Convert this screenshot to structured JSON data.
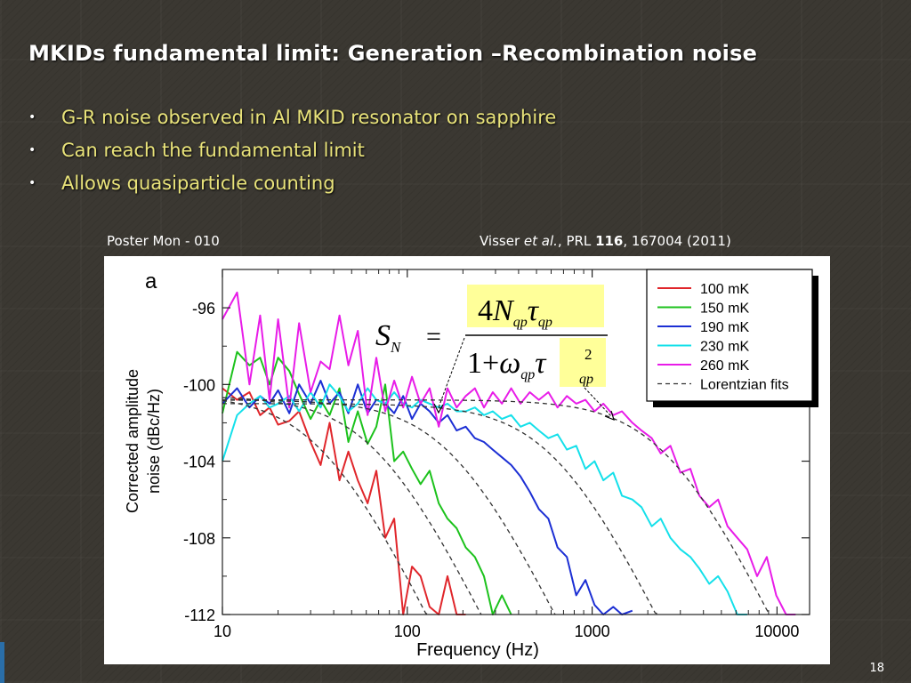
{
  "slide": {
    "title": "MKIDs fundamental limit: Generation –Recombination noise",
    "bullets": [
      "G-R noise observed in Al MKID resonator on sapphire",
      "Can reach the fundamental limit",
      "Allows quasiparticle counting"
    ],
    "poster_label": "Poster Mon - 010",
    "citation": {
      "prefix": "Visser ",
      "et_al": "et al.",
      "journal": ", PRL ",
      "volume": "116",
      "rest": ", 167004 (2011)"
    },
    "page_number": "18",
    "bullet_symbol": "•"
  },
  "formula": {
    "lhs": "S",
    "lhs_sub": "N",
    "equals": "=",
    "num_coef": "4",
    "num_var": "N",
    "sub_qp": "qp",
    "tau": "τ",
    "den_one": "1",
    "den_plus": "+",
    "omega": "ω",
    "exp": "2"
  },
  "chart_data": {
    "type": "line",
    "panel_label": "a",
    "xlabel": "Frequency (Hz)",
    "ylabel": [
      "Corrected amplitude",
      "noise (dBc/Hz)"
    ],
    "x_scale": "log",
    "xlim": [
      10,
      15000
    ],
    "ylim": [
      -112,
      -94
    ],
    "x_ticks": [
      10,
      100,
      1000,
      10000
    ],
    "x_tick_labels": [
      "10",
      "100",
      "1000",
      "10000"
    ],
    "y_ticks": [
      -96,
      -100,
      -104,
      -108,
      -112
    ],
    "y_tick_labels": [
      "-96",
      "-100",
      "-104",
      "-108",
      "-112"
    ],
    "grid": false,
    "legend_position": "top-right",
    "series": [
      {
        "name": "100 mK",
        "color": "#e0262b",
        "x": [
          10,
          12,
          14,
          16,
          18,
          20,
          23,
          26,
          30,
          34,
          38,
          43,
          48,
          54,
          61,
          68,
          76,
          85,
          95,
          106,
          118,
          132,
          148,
          165,
          185,
          207
        ],
        "y": [
          -100.2,
          -100.8,
          -100.4,
          -101.6,
          -101.2,
          -102.1,
          -101.9,
          -101.4,
          -103.0,
          -104.2,
          -102.0,
          -105.0,
          -103.5,
          -105.0,
          -106.2,
          -104.5,
          -108.0,
          -107.0,
          -112.0,
          -109.5,
          -110.0,
          -111.6,
          -112.0,
          -110.0,
          -112.0,
          -112.0
        ]
      },
      {
        "name": "150 mK",
        "color": "#1cc21c",
        "x": [
          10,
          12,
          14,
          16,
          18,
          20,
          23,
          26,
          30,
          34,
          38,
          43,
          48,
          54,
          61,
          68,
          76,
          85,
          95,
          106,
          118,
          132,
          148,
          165,
          185,
          207,
          232,
          260,
          290,
          325,
          365
        ],
        "y": [
          -101.5,
          -98.3,
          -99.0,
          -98.6,
          -100.0,
          -98.6,
          -99.3,
          -100.5,
          -101.8,
          -100.8,
          -101.6,
          -100.2,
          -103.0,
          -101.4,
          -103.1,
          -102.2,
          -100.0,
          -104.0,
          -103.5,
          -104.4,
          -105.2,
          -104.5,
          -106.2,
          -107.0,
          -107.5,
          -108.5,
          -109.0,
          -110.0,
          -112.0,
          -111.0,
          -112.0
        ]
      },
      {
        "name": "190 mK",
        "color": "#1c2fd4",
        "x": [
          10,
          12,
          14,
          16,
          18,
          20,
          23,
          26,
          30,
          34,
          38,
          43,
          48,
          54,
          61,
          68,
          76,
          85,
          95,
          106,
          118,
          132,
          148,
          165,
          185,
          207,
          232,
          260,
          290,
          325,
          365,
          410,
          460,
          515,
          580,
          650,
          730,
          820,
          920,
          1030,
          1150,
          1300,
          1450,
          1650
        ],
        "y": [
          -101.0,
          -100.2,
          -101.2,
          -100.6,
          -101.0,
          -100.3,
          -101.5,
          -100.0,
          -101.0,
          -99.8,
          -101.0,
          -100.4,
          -101.5,
          -100.0,
          -101.5,
          -100.8,
          -101.0,
          -101.5,
          -100.6,
          -101.8,
          -101.0,
          -101.4,
          -102.0,
          -101.6,
          -102.4,
          -102.2,
          -102.8,
          -103.0,
          -103.4,
          -103.8,
          -104.2,
          -104.8,
          -105.6,
          -106.5,
          -107.0,
          -108.5,
          -109.0,
          -111.0,
          -110.2,
          -111.5,
          -112.0,
          -111.6,
          -112.0,
          -111.8
        ]
      },
      {
        "name": "230 mK",
        "color": "#14e0ea",
        "x": [
          10,
          12,
          14,
          16,
          18,
          20,
          23,
          26,
          30,
          34,
          38,
          43,
          48,
          54,
          61,
          68,
          76,
          85,
          95,
          106,
          118,
          132,
          148,
          165,
          185,
          207,
          232,
          260,
          290,
          325,
          365,
          410,
          460,
          515,
          580,
          650,
          730,
          820,
          920,
          1030,
          1150,
          1300,
          1450,
          1650,
          1850,
          2100,
          2350,
          2650,
          3000,
          3400,
          3800,
          4300,
          4800,
          5400,
          6100,
          6900
        ],
        "y": [
          -104.0,
          -101.6,
          -101.0,
          -100.6,
          -101.2,
          -101.0,
          -100.6,
          -101.4,
          -100.4,
          -101.2,
          -100.0,
          -100.6,
          -101.4,
          -101.0,
          -100.2,
          -100.8,
          -101.0,
          -100.4,
          -101.0,
          -101.2,
          -100.8,
          -101.0,
          -101.2,
          -101.0,
          -101.4,
          -101.4,
          -101.2,
          -101.6,
          -101.4,
          -101.8,
          -101.6,
          -102.2,
          -102.0,
          -102.4,
          -102.8,
          -102.6,
          -103.4,
          -103.2,
          -104.4,
          -104.0,
          -105.0,
          -104.6,
          -105.8,
          -106.0,
          -106.4,
          -107.4,
          -107.0,
          -108.0,
          -108.6,
          -109.0,
          -109.6,
          -110.4,
          -110.0,
          -110.8,
          -112.0,
          -112.0
        ]
      },
      {
        "name": "260 mK",
        "color": "#e81ce8",
        "x": [
          10,
          12,
          14,
          16,
          18,
          20,
          23,
          26,
          30,
          34,
          38,
          43,
          48,
          54,
          61,
          68,
          76,
          85,
          95,
          106,
          118,
          132,
          148,
          165,
          185,
          207,
          232,
          260,
          290,
          325,
          365,
          410,
          460,
          515,
          580,
          650,
          730,
          820,
          920,
          1030,
          1150,
          1300,
          1450,
          1650,
          1850,
          2100,
          2350,
          2650,
          3000,
          3400,
          3800,
          4300,
          4800,
          5400,
          6100,
          6900,
          7800,
          8800,
          9900,
          11200,
          12600
        ],
        "y": [
          -96.6,
          -95.2,
          -100.0,
          -96.4,
          -100.8,
          -96.6,
          -101.2,
          -96.8,
          -100.4,
          -98.8,
          -99.2,
          -96.4,
          -99.0,
          -97.2,
          -101.6,
          -98.6,
          -101.4,
          -99.8,
          -101.2,
          -99.6,
          -101.0,
          -100.2,
          -102.2,
          -100.2,
          -101.2,
          -100.6,
          -100.2,
          -101.2,
          -100.4,
          -101.0,
          -100.2,
          -101.0,
          -100.4,
          -100.8,
          -100.4,
          -101.2,
          -100.6,
          -101.0,
          -100.8,
          -101.4,
          -101.0,
          -101.6,
          -101.4,
          -102.0,
          -102.4,
          -102.8,
          -103.6,
          -103.2,
          -104.6,
          -104.4,
          -105.8,
          -106.4,
          -106.0,
          -107.4,
          -108.0,
          -108.6,
          -110.0,
          -109.0,
          -111.0,
          -112.0,
          -112.0
        ]
      },
      {
        "name": "Lorentzian fits",
        "color": "#333333",
        "style": "dashed",
        "fits": [
          {
            "plateau_dB": -100.5,
            "rolloff_Hz": 35
          },
          {
            "plateau_dB": -100.6,
            "rolloff_Hz": 70
          },
          {
            "plateau_dB": -100.8,
            "rolloff_Hz": 180
          },
          {
            "plateau_dB": -101.0,
            "rolloff_Hz": 650
          },
          {
            "plateau_dB": -100.8,
            "rolloff_Hz": 2600
          }
        ]
      }
    ]
  }
}
